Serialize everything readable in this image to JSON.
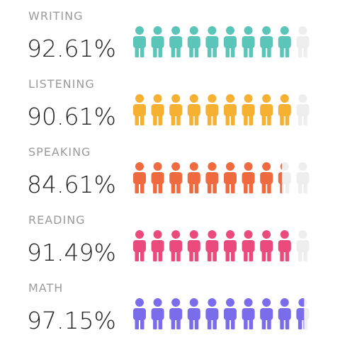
{
  "chart_data": {
    "type": "pictograph",
    "categories": [
      "WRITING",
      "LISTENING",
      "SPEAKING",
      "READING",
      "MATH"
    ],
    "values": [
      92.61,
      90.61,
      84.61,
      91.49,
      97.15
    ],
    "value_labels": [
      "92.61%",
      "90.61%",
      "84.61%",
      "91.49%",
      "97.15%"
    ],
    "colors": [
      "#5cc5b9",
      "#f6b133",
      "#ef6a3f",
      "#eb4a7c",
      "#7a6cea"
    ],
    "xlim": [
      0,
      100
    ]
  }
}
